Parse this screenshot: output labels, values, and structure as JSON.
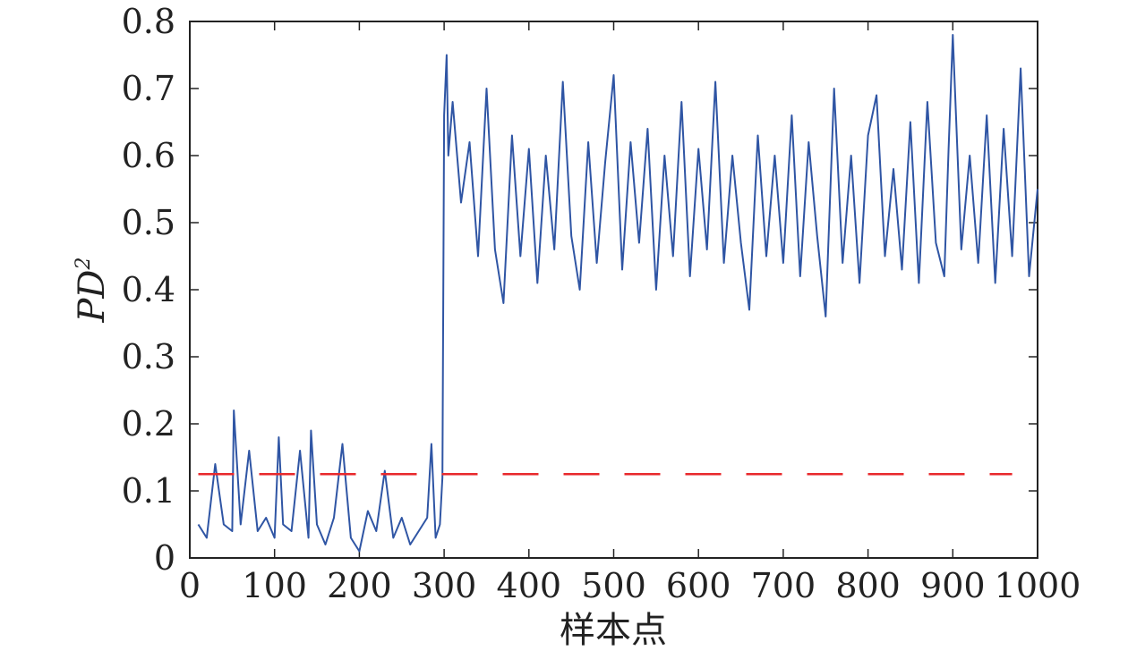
{
  "chart_data": {
    "type": "line",
    "title": "",
    "xlabel": "样本点",
    "ylabel": "PD",
    "ylabel_superscript": "2",
    "xlim": [
      0,
      1000
    ],
    "ylim": [
      0,
      0.8
    ],
    "xticks": [
      0,
      100,
      200,
      300,
      400,
      500,
      600,
      700,
      800,
      900,
      1000
    ],
    "xtick_labels": [
      "0",
      "100",
      "200",
      "300",
      "400",
      "500",
      "600",
      "700",
      "800",
      "900",
      "1000"
    ],
    "yticks": [
      0,
      0.1,
      0.2,
      0.3,
      0.4,
      0.5,
      0.6,
      0.7,
      0.8
    ],
    "ytick_labels": [
      "0",
      "0.1",
      "0.2",
      "0.3",
      "0.4",
      "0.5",
      "0.6",
      "0.7",
      "0.8"
    ],
    "grid": false,
    "series": [
      {
        "color": "#2f55a4",
        "style": "solid",
        "x": [
          10,
          20,
          30,
          40,
          50,
          52,
          60,
          70,
          80,
          90,
          100,
          105,
          110,
          120,
          130,
          140,
          143,
          150,
          160,
          170,
          180,
          190,
          200,
          210,
          220,
          230,
          240,
          250,
          260,
          270,
          280,
          285,
          290,
          295,
          298,
          300,
          303,
          305,
          310,
          320,
          330,
          340,
          350,
          360,
          370,
          380,
          390,
          400,
          410,
          420,
          430,
          440,
          450,
          460,
          470,
          480,
          490,
          500,
          510,
          520,
          530,
          540,
          550,
          560,
          570,
          580,
          590,
          600,
          610,
          620,
          630,
          640,
          650,
          660,
          670,
          680,
          690,
          700,
          710,
          720,
          730,
          740,
          750,
          760,
          770,
          780,
          790,
          800,
          810,
          820,
          830,
          840,
          850,
          860,
          870,
          880,
          890,
          895,
          900,
          910,
          920,
          930,
          940,
          950,
          960,
          970,
          980,
          990,
          1000
        ],
        "y": [
          0.05,
          0.03,
          0.14,
          0.05,
          0.04,
          0.22,
          0.05,
          0.16,
          0.04,
          0.06,
          0.03,
          0.18,
          0.05,
          0.04,
          0.16,
          0.03,
          0.19,
          0.05,
          0.02,
          0.06,
          0.17,
          0.03,
          0.01,
          0.07,
          0.04,
          0.13,
          0.03,
          0.06,
          0.02,
          0.04,
          0.06,
          0.17,
          0.03,
          0.05,
          0.12,
          0.66,
          0.75,
          0.6,
          0.68,
          0.53,
          0.62,
          0.45,
          0.7,
          0.46,
          0.38,
          0.63,
          0.45,
          0.61,
          0.41,
          0.6,
          0.46,
          0.71,
          0.48,
          0.4,
          0.62,
          0.44,
          0.59,
          0.72,
          0.43,
          0.62,
          0.47,
          0.64,
          0.4,
          0.6,
          0.45,
          0.68,
          0.42,
          0.61,
          0.46,
          0.71,
          0.44,
          0.6,
          0.47,
          0.37,
          0.63,
          0.45,
          0.6,
          0.44,
          0.66,
          0.42,
          0.62,
          0.48,
          0.36,
          0.7,
          0.44,
          0.6,
          0.41,
          0.63,
          0.69,
          0.45,
          0.58,
          0.43,
          0.65,
          0.41,
          0.68,
          0.47,
          0.42,
          0.61,
          0.78,
          0.46,
          0.6,
          0.44,
          0.66,
          0.41,
          0.64,
          0.45,
          0.73,
          0.42,
          0.55
        ]
      },
      {
        "color": "#e8292c",
        "style": "dashed",
        "x": [
          10,
          970
        ],
        "y": [
          0.125,
          0.125
        ]
      }
    ]
  }
}
